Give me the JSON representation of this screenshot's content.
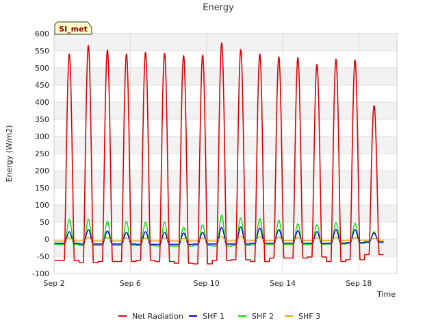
{
  "chart_data": {
    "type": "line",
    "title": "Energy",
    "xlabel": "Time",
    "ylabel": "Energy (W/m2)",
    "station_badge": "SI_met",
    "ylim": [
      -100,
      600
    ],
    "yticks": [
      -100,
      -50,
      0,
      50,
      100,
      150,
      200,
      250,
      300,
      350,
      400,
      450,
      500,
      550,
      600
    ],
    "xlim_days": [
      2,
      20
    ],
    "xticks": [
      {
        "day": 2,
        "label": "Sep 2"
      },
      {
        "day": 6,
        "label": "Sep 6"
      },
      {
        "day": 10,
        "label": "Sep 10"
      },
      {
        "day": 14,
        "label": "Sep 14"
      },
      {
        "day": 18,
        "label": "Sep 18"
      }
    ],
    "grid": true,
    "legend_position": "bottom",
    "daily_peak_days": [
      2.8,
      3.8,
      4.8,
      5.8,
      6.8,
      7.8,
      8.8,
      9.8,
      10.8,
      11.8,
      12.8,
      13.8,
      14.8,
      15.8,
      16.8,
      17.8,
      18.8
    ],
    "series": [
      {
        "name": "Net Radiation",
        "color": "#dd0000",
        "daily_peaks": [
          540,
          565,
          552,
          540,
          545,
          542,
          536,
          537,
          573,
          553,
          540,
          532,
          530,
          510,
          525,
          523,
          390
        ],
        "night_values": [
          -62,
          -68,
          -65,
          -65,
          -62,
          -65,
          -70,
          -72,
          -62,
          -60,
          -65,
          -55,
          -55,
          -52,
          -65,
          -60,
          -45
        ]
      },
      {
        "name": "SHF 1",
        "color": "#0000cc",
        "daily_peaks": [
          22,
          28,
          24,
          20,
          22,
          20,
          18,
          20,
          35,
          36,
          32,
          28,
          25,
          22,
          28,
          28,
          18
        ],
        "night_values": [
          -12,
          -14,
          -14,
          -14,
          -15,
          -15,
          -15,
          -14,
          -14,
          -14,
          -12,
          -12,
          -12,
          -12,
          -12,
          -10,
          -8
        ]
      },
      {
        "name": "SHF 2",
        "color": "#00dd00",
        "daily_peaks": [
          58,
          58,
          52,
          52,
          50,
          50,
          35,
          42,
          70,
          62,
          60,
          55,
          45,
          42,
          48,
          46,
          22
        ],
        "night_values": [
          -15,
          -18,
          -18,
          -18,
          -18,
          -20,
          -20,
          -18,
          -20,
          -18,
          -16,
          -16,
          -16,
          -15,
          -14,
          -12,
          -10
        ]
      },
      {
        "name": "SHF 3",
        "color": "#e8a000",
        "daily_peaks": [
          5,
          5,
          5,
          4,
          4,
          4,
          3,
          4,
          8,
          8,
          7,
          6,
          5,
          4,
          5,
          5,
          3
        ],
        "night_values": [
          -5,
          -5,
          -5,
          -5,
          -5,
          -5,
          -5,
          -5,
          -5,
          -5,
          -4,
          -4,
          -4,
          -4,
          -4,
          -3,
          -3
        ]
      }
    ]
  }
}
